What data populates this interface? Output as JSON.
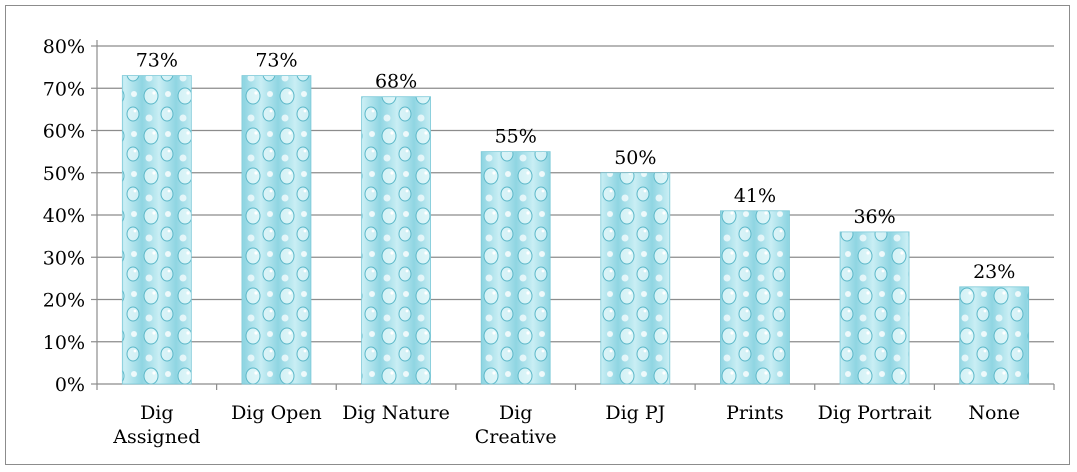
{
  "chart_data": {
    "type": "bar",
    "categories": [
      [
        "Dig",
        "Assigned"
      ],
      [
        "Dig Open"
      ],
      [
        "Dig Nature"
      ],
      [
        "Dig",
        "Creative"
      ],
      [
        "Dig PJ"
      ],
      [
        "Prints"
      ],
      [
        "Dig Portrait"
      ],
      [
        "None"
      ]
    ],
    "values": [
      73,
      73,
      68,
      55,
      50,
      41,
      36,
      23
    ],
    "data_labels": [
      "73%",
      "73%",
      "68%",
      "55%",
      "50%",
      "41%",
      "36%",
      "23%"
    ],
    "yticks": [
      "0%",
      "10%",
      "20%",
      "30%",
      "40%",
      "50%",
      "60%",
      "70%",
      "80%"
    ],
    "ylim": [
      0,
      80
    ],
    "title": "",
    "xlabel": "",
    "ylabel": "",
    "grid": true,
    "legend": "none",
    "colors": {
      "bar_light": "#d9f3f7",
      "bar_mid": "#9fdbe6",
      "bar_dark": "#6cc4d4",
      "gridline": "#8c8c8c",
      "frame": "#8c8c8c"
    }
  }
}
